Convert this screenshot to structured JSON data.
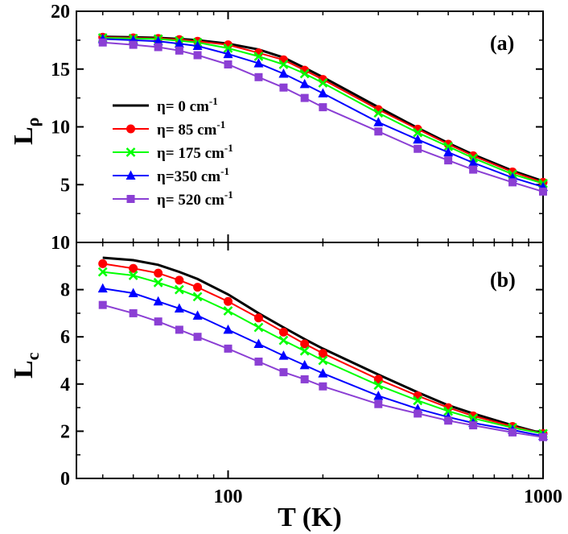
{
  "chart_data": [
    {
      "type": "line",
      "panel": "top",
      "label": "(a)",
      "ylabel_main": "L",
      "ylabel_sub": "ρ",
      "xlabel": "",
      "xscale": "log",
      "xlim": [
        33,
        1000
      ],
      "ylim": [
        0,
        20
      ],
      "yticks": [
        5,
        10,
        15,
        20
      ],
      "yticklabels": [
        "5",
        "10",
        "15",
        "20"
      ],
      "legend": {
        "placement": "center-left",
        "entries": [
          {
            "main": "η= 0 cm",
            "sup": "-1"
          },
          {
            "main": "η= 85 cm",
            "sup": "-1"
          },
          {
            "main": "η= 175 cm",
            "sup": "-1"
          },
          {
            "main": "η=350 cm",
            "sup": "-1"
          },
          {
            "main": "η= 520 cm",
            "sup": "-1"
          }
        ]
      },
      "x": [
        40,
        50,
        60,
        70,
        80,
        100,
        125,
        150,
        175,
        200,
        300,
        400,
        500,
        600,
        800,
        1000
      ],
      "series": [
        {
          "name": "η= 0 cm-1",
          "color": "#000000",
          "marker": "none",
          "values": [
            17.8,
            17.75,
            17.7,
            17.6,
            17.5,
            17.2,
            16.7,
            16.0,
            15.1,
            14.3,
            11.7,
            9.9,
            8.6,
            7.6,
            6.2,
            5.3
          ]
        },
        {
          "name": "η= 85 cm-1",
          "color": "#ff0000",
          "marker": "circle",
          "values": [
            17.75,
            17.7,
            17.65,
            17.55,
            17.4,
            17.1,
            16.4,
            15.8,
            14.9,
            14.1,
            11.5,
            9.8,
            8.5,
            7.5,
            6.1,
            5.2
          ]
        },
        {
          "name": "η= 175 cm-1",
          "color": "#00ff00",
          "marker": "x",
          "values": [
            17.7,
            17.65,
            17.6,
            17.45,
            17.3,
            16.8,
            16.1,
            15.4,
            14.6,
            13.8,
            11.2,
            9.5,
            8.3,
            7.3,
            5.9,
            5.1
          ]
        },
        {
          "name": "η=350 cm-1",
          "color": "#0000ff",
          "marker": "triangle",
          "values": [
            17.6,
            17.5,
            17.4,
            17.2,
            17.0,
            16.3,
            15.5,
            14.6,
            13.7,
            12.9,
            10.4,
            8.9,
            7.8,
            6.9,
            5.6,
            4.8
          ]
        },
        {
          "name": "η= 520 cm-1",
          "color": "#8b3fd4",
          "marker": "square",
          "values": [
            17.3,
            17.1,
            16.9,
            16.6,
            16.2,
            15.4,
            14.3,
            13.4,
            12.5,
            11.7,
            9.6,
            8.1,
            7.1,
            6.3,
            5.2,
            4.4
          ]
        }
      ]
    },
    {
      "type": "line",
      "panel": "bottom",
      "label": "(b)",
      "ylabel_main": "L",
      "ylabel_sub": "c",
      "xlabel": "T (K)",
      "xscale": "log",
      "xlim": [
        33,
        1000
      ],
      "xticks": [
        100,
        1000
      ],
      "xticklabels": [
        "100",
        "1000"
      ],
      "ylim": [
        0,
        10
      ],
      "yticks": [
        0,
        2,
        4,
        6,
        8,
        10
      ],
      "yticklabels": [
        "0",
        "2",
        "4",
        "6",
        "8",
        "10"
      ],
      "x": [
        40,
        50,
        60,
        70,
        80,
        100,
        125,
        150,
        175,
        200,
        300,
        400,
        500,
        600,
        800,
        1000
      ],
      "series": [
        {
          "name": "η= 0 cm-1",
          "color": "#000000",
          "marker": "none",
          "values": [
            9.35,
            9.25,
            9.05,
            8.75,
            8.45,
            7.8,
            7.0,
            6.4,
            5.9,
            5.5,
            4.4,
            3.65,
            3.1,
            2.75,
            2.25,
            1.9
          ]
        },
        {
          "name": "η= 85 cm-1",
          "color": "#ff0000",
          "marker": "circle",
          "values": [
            9.1,
            8.9,
            8.7,
            8.4,
            8.1,
            7.5,
            6.8,
            6.2,
            5.7,
            5.3,
            4.2,
            3.5,
            3.0,
            2.65,
            2.2,
            1.9
          ]
        },
        {
          "name": "η= 175 cm-1",
          "color": "#00ff00",
          "marker": "x",
          "values": [
            8.75,
            8.6,
            8.3,
            8.0,
            7.7,
            7.1,
            6.4,
            5.85,
            5.4,
            5.0,
            3.95,
            3.3,
            2.85,
            2.55,
            2.15,
            1.9
          ]
        },
        {
          "name": "η=350 cm-1",
          "color": "#0000ff",
          "marker": "triangle",
          "values": [
            8.05,
            7.85,
            7.5,
            7.2,
            6.9,
            6.3,
            5.7,
            5.2,
            4.8,
            4.45,
            3.5,
            2.95,
            2.6,
            2.35,
            2.05,
            1.8
          ]
        },
        {
          "name": "η= 520 cm-1",
          "color": "#8b3fd4",
          "marker": "square",
          "values": [
            7.35,
            7.0,
            6.65,
            6.3,
            6.0,
            5.5,
            4.95,
            4.5,
            4.2,
            3.9,
            3.15,
            2.75,
            2.45,
            2.25,
            1.95,
            1.75
          ]
        }
      ]
    }
  ]
}
